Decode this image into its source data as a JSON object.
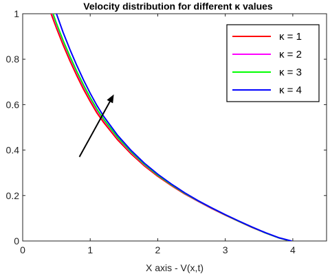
{
  "chart_data": {
    "type": "line",
    "title": "Velocity distribution for different κ values",
    "xlabel": "X axis - V(x,t)",
    "ylabel": "",
    "xlim": [
      0,
      4.5
    ],
    "ylim": [
      0,
      1
    ],
    "xticks": [
      "0",
      "1",
      "2",
      "3",
      "4"
    ],
    "yticks": [
      "0",
      "0.2",
      "0.4",
      "0.6",
      "0.8",
      "1"
    ],
    "grid": false,
    "legend_position": "top-right",
    "series": [
      {
        "name": "κ = 1",
        "color": "#ff0000",
        "x": [
          0.42,
          0.5,
          0.6,
          0.7,
          0.8,
          0.9,
          1.0,
          1.1,
          1.2,
          1.4,
          1.6,
          1.8,
          2.0,
          2.2,
          2.4,
          2.6,
          2.8,
          3.0,
          3.2,
          3.4,
          3.6,
          3.8,
          3.96
        ],
        "y": [
          1.0,
          0.937,
          0.862,
          0.792,
          0.728,
          0.668,
          0.614,
          0.563,
          0.521,
          0.447,
          0.385,
          0.331,
          0.285,
          0.244,
          0.207,
          0.174,
          0.143,
          0.114,
          0.086,
          0.059,
          0.035,
          0.013,
          0.0
        ]
      },
      {
        "name": "κ = 2",
        "color": "#ff00ff",
        "x": [
          0.44,
          0.5,
          0.6,
          0.7,
          0.8,
          0.9,
          1.0,
          1.1,
          1.2,
          1.4,
          1.6,
          1.8,
          2.0,
          2.2,
          2.4,
          2.6,
          2.8,
          3.0,
          3.2,
          3.4,
          3.6,
          3.8,
          3.97
        ],
        "y": [
          1.0,
          0.951,
          0.876,
          0.806,
          0.741,
          0.681,
          0.626,
          0.575,
          0.531,
          0.455,
          0.391,
          0.336,
          0.289,
          0.247,
          0.209,
          0.175,
          0.144,
          0.115,
          0.087,
          0.06,
          0.035,
          0.013,
          0.0
        ]
      },
      {
        "name": "κ = 3",
        "color": "#00ff00",
        "x": [
          0.45,
          0.5,
          0.6,
          0.7,
          0.8,
          0.9,
          1.0,
          1.1,
          1.2,
          1.4,
          1.6,
          1.8,
          2.0,
          2.2,
          2.4,
          2.6,
          2.8,
          3.0,
          3.2,
          3.4,
          3.6,
          3.8,
          3.97
        ],
        "y": [
          1.0,
          0.958,
          0.882,
          0.812,
          0.747,
          0.687,
          0.631,
          0.58,
          0.535,
          0.458,
          0.394,
          0.338,
          0.29,
          0.248,
          0.21,
          0.176,
          0.145,
          0.115,
          0.087,
          0.06,
          0.035,
          0.013,
          0.0
        ]
      },
      {
        "name": "κ = 4",
        "color": "#0000ff",
        "x": [
          0.5,
          0.6,
          0.7,
          0.8,
          0.9,
          1.0,
          1.1,
          1.2,
          1.4,
          1.6,
          1.8,
          2.0,
          2.2,
          2.4,
          2.6,
          2.8,
          3.0,
          3.2,
          3.4,
          3.6,
          3.8,
          3.98
        ],
        "y": [
          1.0,
          0.917,
          0.842,
          0.773,
          0.709,
          0.65,
          0.596,
          0.548,
          0.467,
          0.4,
          0.343,
          0.294,
          0.251,
          0.212,
          0.177,
          0.146,
          0.116,
          0.088,
          0.061,
          0.036,
          0.014,
          0.0
        ]
      }
    ],
    "annotations": [
      {
        "type": "arrow",
        "from": [
          0.84,
          0.37
        ],
        "to": [
          1.35,
          0.645
        ]
      }
    ]
  }
}
